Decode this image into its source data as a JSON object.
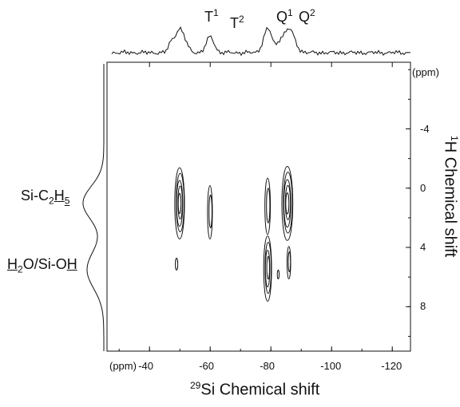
{
  "chart_data": {
    "type": "contour",
    "title": "",
    "x_axis": {
      "label_prefix": "29",
      "label": "Si Chemical shift",
      "unit": "(ppm)",
      "range_ppm": [
        -26,
        -126
      ],
      "ticks": [
        -40,
        -60,
        -80,
        -100,
        -120
      ],
      "tick_labels": [
        "-40",
        "-60",
        "-80",
        "-100",
        "-120"
      ]
    },
    "y_axis": {
      "label_prefix": "1",
      "label": "H Chemical shift",
      "unit": "(ppm)",
      "range_ppm": [
        -8.5,
        11
      ],
      "ticks": [
        -4,
        0,
        4,
        8
      ],
      "tick_labels": [
        "-4",
        "0",
        "4",
        "8"
      ]
    },
    "top_projection_peaks": [
      {
        "label": "T",
        "sup": "1",
        "x": -50
      },
      {
        "label": "T",
        "sup": "2",
        "x": -60
      },
      {
        "label": "Q",
        "sup": "1",
        "x": -79
      },
      {
        "label": "Q",
        "sup": "2",
        "x": -86
      }
    ],
    "side_projection_labels": [
      {
        "text": "Si-C2H5",
        "y": 1.0
      },
      {
        "text": "H2O/Si-OH",
        "y": 5.5
      }
    ],
    "contour_peaks": [
      {
        "x": -50,
        "y": 1.0,
        "w": 1.6,
        "h": 2.4,
        "levels": 5
      },
      {
        "x": -60,
        "y": 1.6,
        "w": 0.8,
        "h": 1.8,
        "levels": 2
      },
      {
        "x": -79,
        "y": 1.2,
        "w": 0.9,
        "h": 1.9,
        "levels": 2
      },
      {
        "x": -79,
        "y": 5.4,
        "w": 1.3,
        "h": 2.2,
        "levels": 4
      },
      {
        "x": -85.5,
        "y": 1.0,
        "w": 1.8,
        "h": 2.5,
        "levels": 5
      },
      {
        "x": -86,
        "y": 5.0,
        "w": 0.6,
        "h": 1.1,
        "levels": 2
      },
      {
        "x": -49,
        "y": 5.1,
        "w": 0.4,
        "h": 0.4,
        "levels": 1
      },
      {
        "x": -82.5,
        "y": 5.8,
        "w": 0.3,
        "h": 0.3,
        "levels": 1
      }
    ]
  },
  "labels": {
    "t1": "T",
    "t1_sup": "1",
    "t2": "T",
    "t2_sup": "2",
    "q1": "Q",
    "q1_sup": "1",
    "q2": "Q",
    "q2_sup": "2",
    "side1_a": "Si-C",
    "side1_b": "2",
    "side1_c": "H",
    "side1_d": "5",
    "side2_a": "H",
    "side2_b": "2",
    "side2_c": "O/Si-O",
    "side2_d": "H"
  }
}
